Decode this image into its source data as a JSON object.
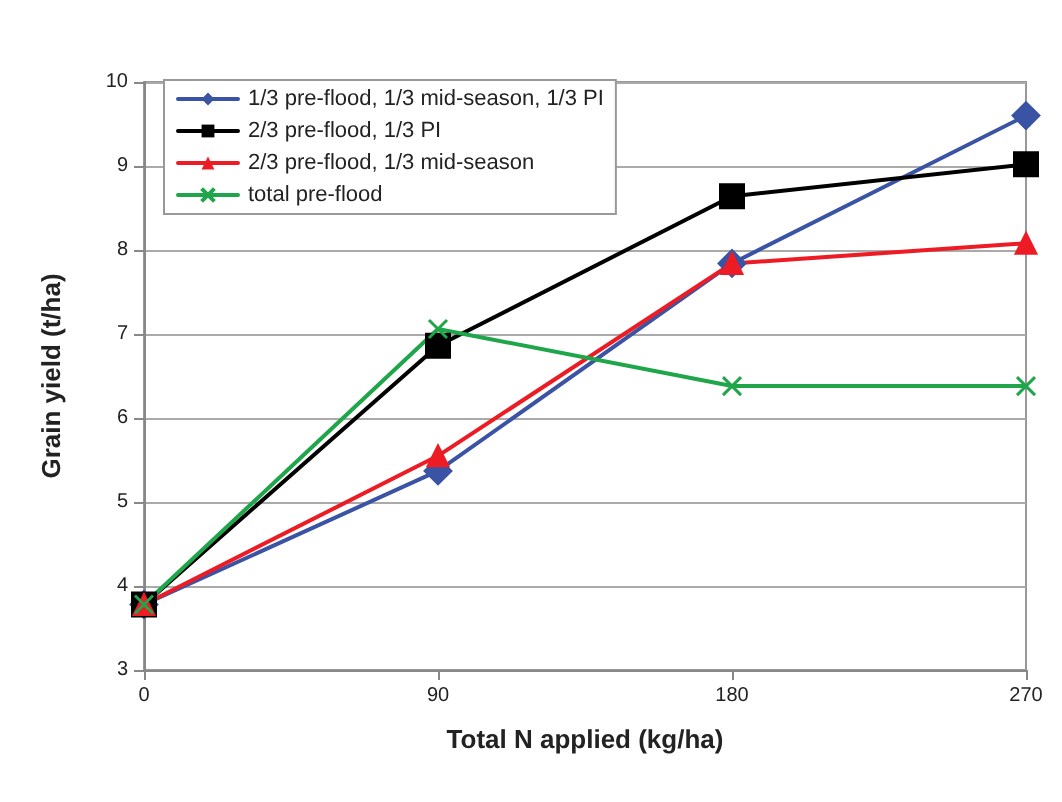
{
  "chart_data": {
    "type": "line",
    "xlabel": "Total N applied (kg/ha)",
    "ylabel": "Grain yield (t/ha)",
    "x": [
      0,
      90,
      180,
      270
    ],
    "series": [
      {
        "name": "1/3 pre-flood, 1/3 mid-season, 1/3 PI",
        "color": "#3a53a4",
        "marker": "diamond",
        "values": [
          3.78,
          5.37,
          7.84,
          9.6
        ]
      },
      {
        "name": "2/3 pre-flood, 1/3 PI",
        "color": "#000000",
        "marker": "square",
        "values": [
          3.78,
          6.86,
          8.64,
          9.02
        ]
      },
      {
        "name": "2/3 pre-flood, 1/3 mid-season",
        "color": "#ed1c24",
        "marker": "triangle",
        "values": [
          3.78,
          5.55,
          7.84,
          8.08
        ]
      },
      {
        "name": "total pre-flood",
        "color": "#1fa64a",
        "marker": "cross",
        "values": [
          3.78,
          7.06,
          6.38,
          6.38
        ]
      }
    ],
    "xlim": [
      0,
      270
    ],
    "xticks": [
      0,
      90,
      180,
      270
    ],
    "ylim": [
      3,
      10
    ],
    "yticks": [
      3,
      4,
      5,
      6,
      7,
      8,
      9,
      10
    ],
    "grid": "y",
    "legend": "top left",
    "line_style": "solid"
  }
}
